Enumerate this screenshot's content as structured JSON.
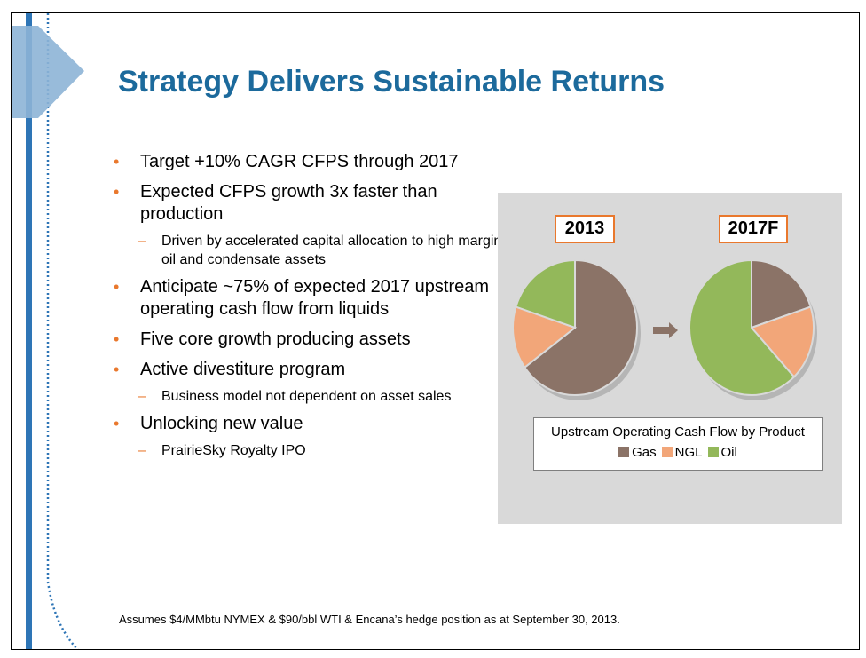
{
  "title": "Strategy Delivers Sustainable Returns",
  "bullets": [
    {
      "level": 1,
      "text": "Target +10% CAGR CFPS through 2017"
    },
    {
      "level": 1,
      "text": "Expected CFPS growth 3x faster than production"
    },
    {
      "level": 2,
      "text": "Driven by accelerated capital allocation to high margin oil and condensate assets"
    },
    {
      "level": 1,
      "text": "Anticipate ~75% of expected 2017 upstream operating cash flow from liquids"
    },
    {
      "level": 1,
      "text": "Five core growth producing assets"
    },
    {
      "level": 1,
      "text": "Active divestiture program"
    },
    {
      "level": 2,
      "text": "Business model not dependent on asset sales"
    },
    {
      "level": 1,
      "text": "Unlocking new value"
    },
    {
      "level": 2,
      "text": "PrairieSky Royalty IPO"
    }
  ],
  "chart_data": {
    "type": "pie",
    "title": "Upstream Operating Cash Flow by Product",
    "legend": [
      "Gas",
      "NGL",
      "Oil"
    ],
    "colors": {
      "Gas": "#8b7367",
      "NGL": "#f2a679",
      "Oil": "#93b85a"
    },
    "charts": [
      {
        "label": "2013",
        "slices": [
          {
            "name": "Gas",
            "value": 65
          },
          {
            "name": "NGL",
            "value": 15
          },
          {
            "name": "Oil",
            "value": 20
          }
        ]
      },
      {
        "label": "2017F",
        "slices": [
          {
            "name": "Gas",
            "value": 20
          },
          {
            "name": "NGL",
            "value": 18
          },
          {
            "name": "Oil",
            "value": 62
          }
        ]
      }
    ]
  },
  "footnote": "Assumes $4/MMbtu  NYMEX & $90/bbl WTI & Encana’s hedge position as at September 30, 2013."
}
